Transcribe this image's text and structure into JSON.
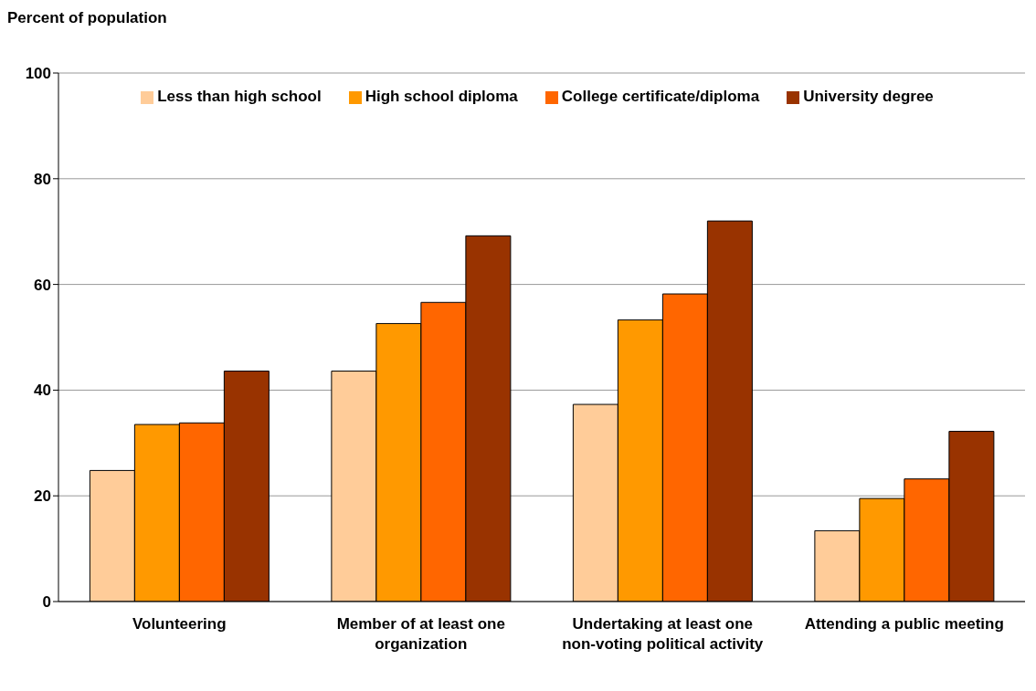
{
  "chart_data": {
    "type": "bar",
    "ylabel": "Percent of population",
    "categories": [
      "Volunteering",
      "Member of at least one organization",
      "Undertaking at least one non-voting political activity",
      "Attending a public meeting"
    ],
    "series": [
      {
        "name": "Less than high school",
        "color": "#ffcc99",
        "values": [
          24.8,
          43.6,
          37.3,
          13.4
        ]
      },
      {
        "name": "High school diploma",
        "color": "#ff9900",
        "values": [
          33.5,
          52.6,
          53.3,
          19.5
        ]
      },
      {
        "name": "College certificate/diploma",
        "color": "#ff6600",
        "values": [
          33.8,
          56.6,
          58.2,
          23.2
        ]
      },
      {
        "name": "University degree",
        "color": "#993300",
        "values": [
          43.6,
          69.2,
          72.0,
          32.2
        ]
      }
    ],
    "ylim": [
      0,
      100
    ],
    "yticks": [
      0,
      20,
      40,
      60,
      80,
      100
    ],
    "grid": "y",
    "legend": "top"
  }
}
